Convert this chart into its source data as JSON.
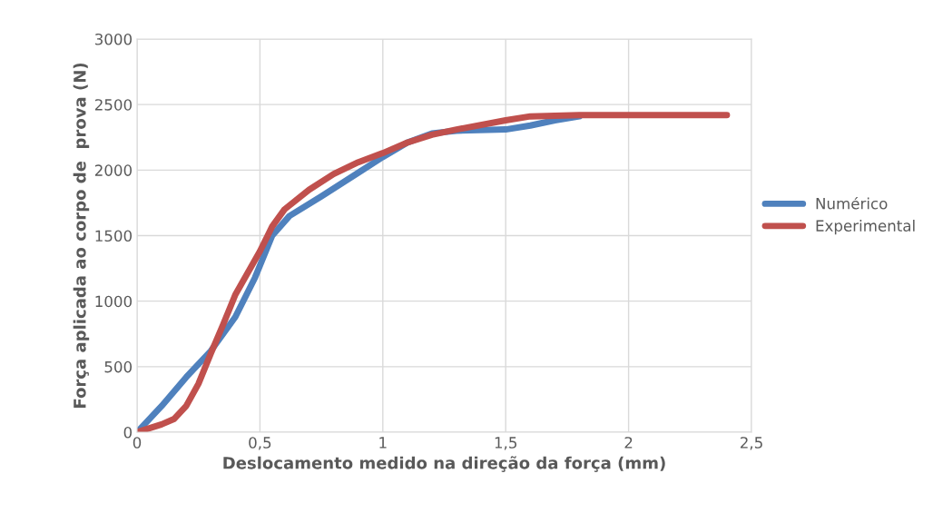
{
  "chart_data": {
    "type": "line",
    "xlabel": "Deslocamento medido na direção da força (mm)",
    "ylabel": "Força aplicada ao corpo de  prova (N)",
    "xlim": [
      0,
      2.5
    ],
    "ylim": [
      0,
      3000
    ],
    "xticks": [
      0,
      {
        "value": 0.5,
        "label": "0,5"
      },
      1,
      {
        "value": 1.5,
        "label": "1,5"
      },
      2,
      {
        "value": 2.5,
        "label": "2,5"
      }
    ],
    "yticks": [
      0,
      500,
      1000,
      1500,
      2000,
      2500,
      3000
    ],
    "grid": true,
    "legend": "right",
    "marker": "none",
    "line_style": "solid",
    "series": [
      {
        "name": "Numérico",
        "color": "#4f81bd",
        "x": [
          0,
          0.1,
          0.2,
          0.3,
          0.4,
          0.48,
          0.55,
          0.62,
          0.75,
          0.9,
          1.0,
          1.1,
          1.2,
          1.3,
          1.5,
          1.6,
          1.7,
          1.8
        ],
        "values": [
          0,
          200,
          420,
          620,
          880,
          1180,
          1500,
          1650,
          1800,
          1980,
          2100,
          2210,
          2280,
          2300,
          2310,
          2340,
          2380,
          2410
        ]
      },
      {
        "name": "Experimental",
        "color": "#c0504d",
        "x": [
          0,
          0.1,
          0.15,
          0.2,
          0.25,
          0.3,
          0.35,
          0.4,
          0.5,
          0.55,
          0.6,
          0.7,
          0.8,
          0.9,
          1.0,
          1.1,
          1.2,
          1.3,
          1.5,
          1.6,
          1.8,
          2.0,
          2.4
        ],
        "values": [
          0,
          60,
          100,
          200,
          370,
          600,
          820,
          1050,
          1380,
          1570,
          1700,
          1850,
          1970,
          2060,
          2130,
          2210,
          2270,
          2310,
          2380,
          2410,
          2420,
          2420,
          2420
        ]
      }
    ]
  }
}
